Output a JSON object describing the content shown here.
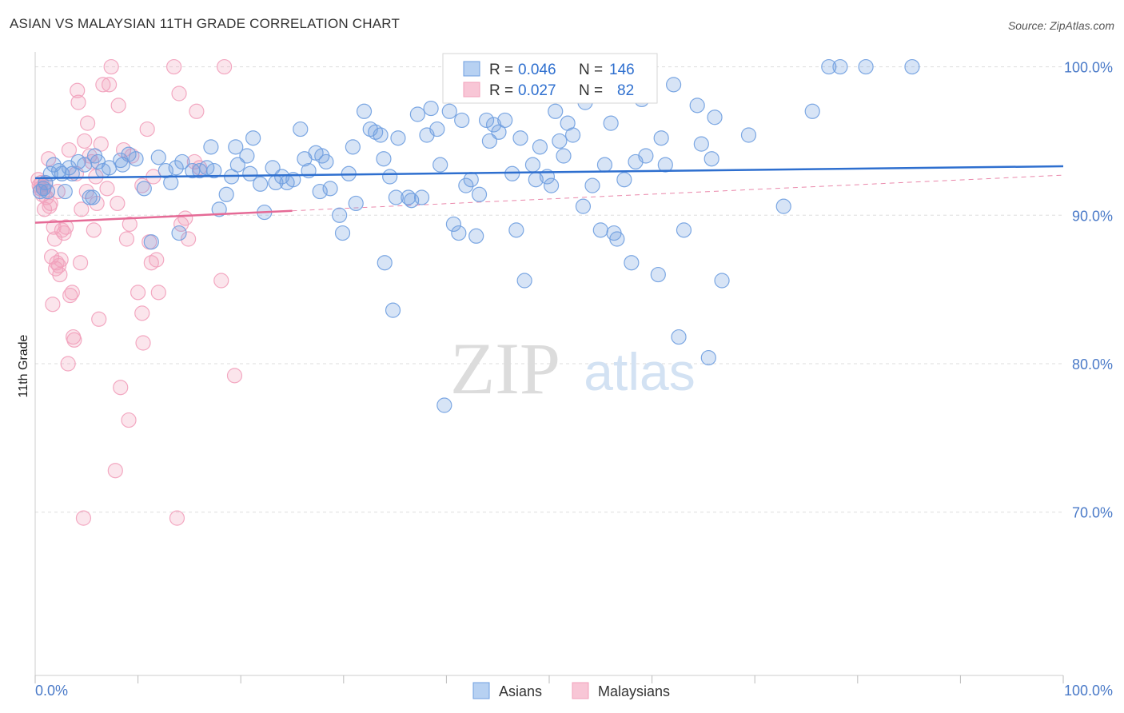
{
  "header": {
    "title": "ASIAN VS MALAYSIAN 11TH GRADE CORRELATION CHART",
    "source": "Source: ZipAtlas.com"
  },
  "watermark": {
    "zip": "ZIP",
    "atlas": "atlas"
  },
  "colors": {
    "asian": "#6f9fe0",
    "asian_line": "#2e6fcf",
    "malaysian": "#f2a0bb",
    "malaysian_line": "#e56a96",
    "axis_text": "#4a7ac8",
    "grid": "#dddddd"
  },
  "stats_legend": {
    "rows": [
      {
        "r_label": "R = ",
        "r_value": "0.046",
        "n_label": "N = ",
        "n_value": "146",
        "series": "asian"
      },
      {
        "r_label": "R = ",
        "r_value": "0.027",
        "n_label": "N = ",
        "n_value": "82",
        "series": "malaysian"
      }
    ]
  },
  "chart_data": {
    "type": "scatter",
    "title": "ASIAN VS MALAYSIAN 11TH GRADE CORRELATION CHART",
    "ylabel": "11th Grade",
    "xlim": [
      0,
      100
    ],
    "ylim": [
      59,
      101
    ],
    "x_tick_labels": [
      "0.0%",
      "100.0%"
    ],
    "y_ticks": [
      {
        "value": 100,
        "label": "100.0%"
      },
      {
        "value": 90,
        "label": "90.0%"
      },
      {
        "value": 80,
        "label": "80.0%"
      },
      {
        "value": 70,
        "label": "70.0%"
      }
    ],
    "grid": true,
    "legend": [
      "Asians",
      "Malaysians"
    ],
    "series": [
      {
        "name": "Asians",
        "R": 0.046,
        "N": 146,
        "trend": {
          "x": [
            0,
            100
          ],
          "y": [
            92.5,
            93.3
          ]
        },
        "points": [
          [
            0.5,
            91.6
          ],
          [
            0.8,
            91.8
          ],
          [
            1.0,
            92.2
          ],
          [
            1.2,
            91.6
          ],
          [
            1.5,
            92.8
          ],
          [
            1.8,
            93.4
          ],
          [
            2.3,
            93.0
          ],
          [
            2.6,
            92.8
          ],
          [
            2.9,
            91.6
          ],
          [
            3.3,
            93.2
          ],
          [
            3.6,
            92.8
          ],
          [
            4.2,
            93.6
          ],
          [
            4.8,
            93.4
          ],
          [
            5.6,
            91.2
          ],
          [
            5.3,
            91.2
          ],
          [
            5.8,
            94.0
          ],
          [
            6.1,
            93.6
          ],
          [
            6.6,
            93.0
          ],
          [
            7.2,
            93.2
          ],
          [
            8.3,
            93.7
          ],
          [
            8.5,
            93.4
          ],
          [
            9.1,
            94.1
          ],
          [
            9.8,
            93.8
          ],
          [
            10.6,
            91.8
          ],
          [
            11.3,
            88.2
          ],
          [
            12.0,
            93.9
          ],
          [
            12.7,
            93.0
          ],
          [
            13.2,
            92.2
          ],
          [
            13.7,
            93.2
          ],
          [
            14.0,
            88.8
          ],
          [
            14.3,
            93.6
          ],
          [
            15.3,
            93.0
          ],
          [
            16.0,
            93.0
          ],
          [
            16.7,
            93.2
          ],
          [
            17.1,
            94.6
          ],
          [
            17.4,
            93.0
          ],
          [
            17.9,
            90.4
          ],
          [
            18.6,
            91.4
          ],
          [
            19.1,
            92.6
          ],
          [
            19.5,
            94.6
          ],
          [
            19.7,
            93.4
          ],
          [
            20.6,
            94.0
          ],
          [
            20.9,
            92.8
          ],
          [
            21.2,
            95.2
          ],
          [
            21.9,
            92.1
          ],
          [
            22.3,
            90.2
          ],
          [
            23.1,
            93.2
          ],
          [
            23.4,
            92.2
          ],
          [
            24.0,
            92.6
          ],
          [
            24.5,
            92.2
          ],
          [
            25.1,
            92.4
          ],
          [
            25.8,
            95.8
          ],
          [
            26.2,
            93.8
          ],
          [
            26.6,
            93.0
          ],
          [
            27.3,
            94.2
          ],
          [
            27.7,
            91.6
          ],
          [
            28.3,
            93.6
          ],
          [
            28.7,
            91.8
          ],
          [
            29.6,
            90.0
          ],
          [
            29.9,
            88.8
          ],
          [
            30.5,
            92.8
          ],
          [
            30.9,
            94.6
          ],
          [
            31.2,
            90.8
          ],
          [
            32.0,
            97.0
          ],
          [
            32.6,
            95.8
          ],
          [
            33.1,
            95.6
          ],
          [
            33.6,
            95.4
          ],
          [
            33.9,
            93.8
          ],
          [
            34.0,
            86.8
          ],
          [
            34.5,
            92.6
          ],
          [
            34.8,
            83.6
          ],
          [
            35.1,
            91.2
          ],
          [
            35.3,
            95.2
          ],
          [
            36.3,
            91.2
          ],
          [
            36.6,
            91.0
          ],
          [
            37.2,
            96.8
          ],
          [
            37.6,
            91.2
          ],
          [
            38.1,
            95.4
          ],
          [
            38.5,
            97.2
          ],
          [
            39.1,
            95.8
          ],
          [
            39.4,
            93.4
          ],
          [
            39.8,
            77.2
          ],
          [
            40.3,
            97.0
          ],
          [
            40.7,
            89.4
          ],
          [
            41.2,
            88.8
          ],
          [
            41.5,
            96.4
          ],
          [
            41.9,
            92.0
          ],
          [
            42.4,
            92.4
          ],
          [
            42.9,
            88.6
          ],
          [
            43.2,
            91.4
          ],
          [
            43.9,
            96.4
          ],
          [
            44.2,
            95.0
          ],
          [
            44.6,
            96.1
          ],
          [
            45.1,
            95.6
          ],
          [
            45.7,
            96.4
          ],
          [
            46.4,
            92.8
          ],
          [
            46.8,
            89.0
          ],
          [
            47.2,
            95.2
          ],
          [
            47.6,
            85.6
          ],
          [
            48.4,
            93.4
          ],
          [
            48.7,
            92.4
          ],
          [
            49.1,
            94.6
          ],
          [
            49.8,
            92.6
          ],
          [
            50.2,
            92.0
          ],
          [
            50.6,
            97.0
          ],
          [
            51.0,
            95.0
          ],
          [
            51.4,
            94.0
          ],
          [
            51.8,
            96.2
          ],
          [
            52.3,
            95.4
          ],
          [
            53.3,
            90.6
          ],
          [
            53.5,
            97.6
          ],
          [
            54.2,
            92.0
          ],
          [
            55.0,
            89.0
          ],
          [
            55.4,
            93.4
          ],
          [
            56.0,
            96.2
          ],
          [
            56.3,
            88.8
          ],
          [
            56.6,
            88.4
          ],
          [
            57.3,
            92.4
          ],
          [
            58.0,
            86.8
          ],
          [
            58.4,
            93.6
          ],
          [
            59.0,
            97.8
          ],
          [
            59.4,
            94.0
          ],
          [
            60.6,
            86.0
          ],
          [
            60.9,
            95.2
          ],
          [
            61.3,
            93.4
          ],
          [
            62.1,
            98.8
          ],
          [
            62.6,
            81.8
          ],
          [
            63.1,
            89.0
          ],
          [
            64.4,
            97.4
          ],
          [
            64.8,
            94.8
          ],
          [
            65.5,
            80.4
          ],
          [
            65.8,
            93.8
          ],
          [
            66.1,
            96.6
          ],
          [
            66.8,
            85.6
          ],
          [
            69.4,
            95.4
          ],
          [
            72.8,
            90.6
          ],
          [
            75.6,
            97.0
          ],
          [
            77.2,
            100.0
          ],
          [
            78.3,
            100.0
          ],
          [
            80.8,
            100.0
          ],
          [
            85.3,
            100.0
          ],
          [
            27.9,
            94.0
          ]
        ]
      },
      {
        "name": "Malaysians",
        "R": 0.027,
        "N": 82,
        "trend": {
          "x": [
            0,
            25
          ],
          "y": [
            89.5,
            90.3
          ]
        },
        "points": [
          [
            0.3,
            92.4
          ],
          [
            0.4,
            92.0
          ],
          [
            0.5,
            91.8
          ],
          [
            0.6,
            92.2
          ],
          [
            0.7,
            91.4
          ],
          [
            0.8,
            91.9
          ],
          [
            0.9,
            90.4
          ],
          [
            1.0,
            92.1
          ],
          [
            1.1,
            91.2
          ],
          [
            1.3,
            93.8
          ],
          [
            1.4,
            90.6
          ],
          [
            1.5,
            90.8
          ],
          [
            1.6,
            87.2
          ],
          [
            1.7,
            84.0
          ],
          [
            1.8,
            89.2
          ],
          [
            1.9,
            88.4
          ],
          [
            2.0,
            86.4
          ],
          [
            2.1,
            86.8
          ],
          [
            2.2,
            91.6
          ],
          [
            2.3,
            86.6
          ],
          [
            2.4,
            86.0
          ],
          [
            2.5,
            87.0
          ],
          [
            2.6,
            89.0
          ],
          [
            2.8,
            88.8
          ],
          [
            3.0,
            89.2
          ],
          [
            3.2,
            80.0
          ],
          [
            3.3,
            94.4
          ],
          [
            3.4,
            84.6
          ],
          [
            3.6,
            84.8
          ],
          [
            3.7,
            81.8
          ],
          [
            3.8,
            81.6
          ],
          [
            4.0,
            92.8
          ],
          [
            4.1,
            98.4
          ],
          [
            4.2,
            97.6
          ],
          [
            4.4,
            86.8
          ],
          [
            4.5,
            90.4
          ],
          [
            4.7,
            69.6
          ],
          [
            4.8,
            95.0
          ],
          [
            5.0,
            91.6
          ],
          [
            5.1,
            96.2
          ],
          [
            5.3,
            94.0
          ],
          [
            5.5,
            93.6
          ],
          [
            5.7,
            89.0
          ],
          [
            5.9,
            92.6
          ],
          [
            6.0,
            90.8
          ],
          [
            6.2,
            83.0
          ],
          [
            6.4,
            94.8
          ],
          [
            6.6,
            98.8
          ],
          [
            7.0,
            91.8
          ],
          [
            7.2,
            98.8
          ],
          [
            7.4,
            100.0
          ],
          [
            7.8,
            72.8
          ],
          [
            8.0,
            90.8
          ],
          [
            8.1,
            97.4
          ],
          [
            8.3,
            78.4
          ],
          [
            8.6,
            94.4
          ],
          [
            8.9,
            88.4
          ],
          [
            9.1,
            76.2
          ],
          [
            9.2,
            89.4
          ],
          [
            9.4,
            94.0
          ],
          [
            10.0,
            84.8
          ],
          [
            10.4,
            92.0
          ],
          [
            10.4,
            83.4
          ],
          [
            10.5,
            81.4
          ],
          [
            10.9,
            95.8
          ],
          [
            11.1,
            88.2
          ],
          [
            11.3,
            86.8
          ],
          [
            11.5,
            92.6
          ],
          [
            11.8,
            87.0
          ],
          [
            12.0,
            84.8
          ],
          [
            13.5,
            100.0
          ],
          [
            13.8,
            69.6
          ],
          [
            14.0,
            98.2
          ],
          [
            14.2,
            89.4
          ],
          [
            14.6,
            89.8
          ],
          [
            14.9,
            88.4
          ],
          [
            15.5,
            93.6
          ],
          [
            15.7,
            97.0
          ],
          [
            16.0,
            93.2
          ],
          [
            18.1,
            85.6
          ],
          [
            18.4,
            100.0
          ],
          [
            19.4,
            79.2
          ]
        ]
      }
    ]
  },
  "bottom_legend": [
    {
      "label": "Asians",
      "series": "asian"
    },
    {
      "label": "Malaysians",
      "series": "malaysian"
    }
  ]
}
